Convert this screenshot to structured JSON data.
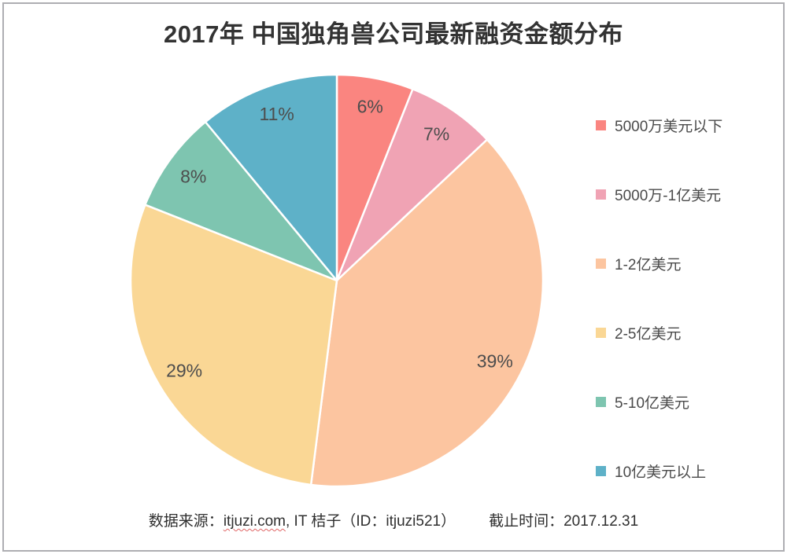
{
  "page": {
    "title": "2017年 中国独角兽公司最新融资金额分布",
    "footer": {
      "source_prefix": "数据来源：",
      "source_link": "itjuzi.com",
      "source_suffix": ", IT 桔子（ID：itjuzi521）",
      "deadline": "截止时间：2017.12.31"
    }
  },
  "chart_data": {
    "type": "pie",
    "title": "2017年 中国独角兽公司最新融资金额分布",
    "start_angle_deg": 0,
    "direction": "clockwise",
    "legend_position": "right",
    "total_pct": 100,
    "label_color": "#4d4d4d",
    "separator_color": "#ffffff",
    "slices": [
      {
        "label": "5000万美元以下",
        "value_pct": 6,
        "display": "6%",
        "color": "#FA8580"
      },
      {
        "label": "5000万-1亿美元",
        "value_pct": 7,
        "display": "7%",
        "color": "#F0A3B4"
      },
      {
        "label": "1-2亿美元",
        "value_pct": 39,
        "display": "39%",
        "color": "#FCC5A0"
      },
      {
        "label": "2-5亿美元",
        "value_pct": 29,
        "display": "29%",
        "color": "#FAD795"
      },
      {
        "label": "5-10亿美元",
        "value_pct": 8,
        "display": "8%",
        "color": "#7EC5B0"
      },
      {
        "label": "10亿美元以上",
        "value_pct": 11,
        "display": "11%",
        "color": "#5EB1C8"
      }
    ]
  }
}
